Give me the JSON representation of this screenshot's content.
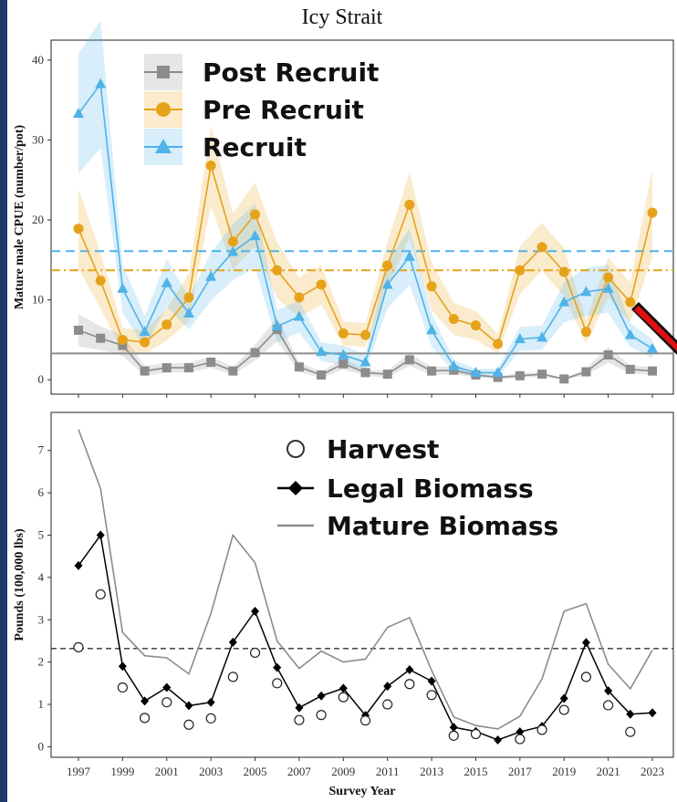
{
  "figure_title": "Icy Strait",
  "colors": {
    "post_recruit": "#8c8c8c",
    "pre_recruit": "#e6a21a",
    "recruit": "#4fb3e8",
    "legal": "#000000",
    "mature": "#8c8c8c",
    "background_border": "#1a3a6b",
    "arrow": "#e01010"
  },
  "chart_data": [
    {
      "type": "line",
      "ylabel": "Mature male CPUE (number/pot)",
      "xlabel": "",
      "x": [
        1997,
        1998,
        1999,
        2000,
        2001,
        2002,
        2003,
        2004,
        2005,
        2006,
        2007,
        2008,
        2009,
        2010,
        2011,
        2012,
        2013,
        2014,
        2015,
        2016,
        2017,
        2018,
        2019,
        2020,
        2021,
        2022,
        2023
      ],
      "ylim": [
        -1.8,
        42.5
      ],
      "yticks": [
        0,
        10,
        20,
        30,
        40
      ],
      "legend_position": "top-left",
      "series": [
        {
          "name": "Post Recruit",
          "marker": "square",
          "color_key": "post_recruit",
          "values": [
            6.2,
            5.2,
            4.3,
            1.1,
            1.5,
            1.5,
            2.2,
            1.1,
            3.4,
            6.3,
            1.6,
            0.6,
            2.0,
            0.9,
            0.7,
            2.5,
            1.1,
            1.2,
            0.6,
            0.3,
            0.5,
            0.7,
            0.1,
            1.0,
            3.1,
            1.3,
            1.1
          ],
          "band_halfwidth": [
            2.0,
            1.5,
            1.3,
            0.6,
            0.6,
            0.6,
            0.7,
            0.5,
            1.0,
            1.5,
            0.6,
            0.4,
            0.7,
            0.4,
            0.4,
            0.8,
            0.5,
            0.5,
            0.3,
            0.2,
            0.3,
            0.3,
            0.1,
            0.4,
            1.0,
            0.5,
            0.5
          ]
        },
        {
          "name": "Pre Recruit",
          "marker": "circle",
          "color_key": "pre_recruit",
          "values": [
            18.9,
            12.4,
            5.0,
            4.7,
            6.9,
            10.3,
            26.8,
            17.3,
            20.7,
            13.7,
            10.3,
            11.9,
            5.8,
            5.6,
            14.3,
            21.9,
            11.7,
            7.6,
            6.8,
            4.5,
            13.7,
            16.6,
            13.5,
            6.0,
            12.8,
            9.7,
            20.9
          ],
          "band_halfwidth": [
            5.0,
            3.5,
            1.5,
            1.5,
            2.0,
            3.0,
            5.0,
            3.5,
            4.0,
            3.5,
            2.5,
            2.5,
            1.5,
            1.5,
            3.0,
            4.0,
            3.0,
            2.0,
            1.8,
            1.2,
            3.0,
            3.0,
            3.0,
            1.5,
            2.5,
            2.5,
            5.5
          ]
        },
        {
          "name": "Recruit",
          "marker": "triangle",
          "color_key": "recruit",
          "values": [
            33.3,
            37.0,
            11.4,
            6.0,
            12.1,
            8.3,
            12.9,
            16.0,
            18.0,
            6.7,
            7.9,
            3.5,
            3.1,
            2.2,
            11.9,
            15.4,
            6.2,
            1.7,
            0.9,
            0.9,
            5.1,
            5.3,
            9.7,
            11.0,
            11.4,
            5.6,
            3.9
          ],
          "band_halfwidth": [
            7.5,
            8.0,
            3.0,
            2.0,
            3.0,
            2.0,
            3.0,
            3.5,
            4.0,
            2.0,
            2.0,
            1.2,
            1.2,
            1.0,
            3.0,
            3.5,
            2.0,
            0.8,
            0.5,
            0.5,
            1.5,
            1.5,
            2.5,
            3.0,
            3.0,
            1.5,
            1.2
          ]
        }
      ],
      "reference_lines": [
        {
          "series": "Post Recruit",
          "value": 3.3,
          "style": "solid",
          "color_key": "post_recruit"
        },
        {
          "series": "Pre Recruit",
          "value": 13.7,
          "style": "dashdot",
          "color_key": "pre_recruit"
        },
        {
          "series": "Recruit",
          "value": 16.1,
          "style": "dashed",
          "color_key": "recruit"
        }
      ]
    },
    {
      "type": "line",
      "ylabel": "Pounds (100,000 lbs)",
      "xlabel": "Survey Year",
      "x": [
        1997,
        1998,
        1999,
        2000,
        2001,
        2002,
        2003,
        2004,
        2005,
        2006,
        2007,
        2008,
        2009,
        2010,
        2011,
        2012,
        2013,
        2014,
        2015,
        2016,
        2017,
        2018,
        2019,
        2020,
        2021,
        2022,
        2023
      ],
      "xticks": [
        1997,
        1999,
        2001,
        2003,
        2005,
        2007,
        2009,
        2011,
        2013,
        2015,
        2017,
        2019,
        2021,
        2023
      ],
      "ylim": [
        -0.25,
        7.9
      ],
      "yticks": [
        0,
        1,
        2,
        3,
        4,
        5,
        6,
        7
      ],
      "legend_position": "top-right",
      "series": [
        {
          "name": "Harvest",
          "marker": "open-circle",
          "line": false,
          "values": [
            2.35,
            3.6,
            1.4,
            0.68,
            1.05,
            0.52,
            0.67,
            1.65,
            2.22,
            1.5,
            0.63,
            0.75,
            1.17,
            0.62,
            1.0,
            1.48,
            1.22,
            0.26,
            0.3,
            null,
            0.18,
            0.4,
            0.87,
            1.65,
            0.98,
            0.35,
            null
          ]
        },
        {
          "name": "Legal Biomass",
          "marker": "diamond",
          "color_key": "legal",
          "values": [
            4.28,
            5.0,
            1.9,
            1.08,
            1.4,
            0.97,
            1.05,
            2.47,
            3.2,
            1.87,
            0.92,
            1.2,
            1.38,
            0.74,
            1.43,
            1.82,
            1.55,
            0.46,
            0.36,
            0.16,
            0.35,
            0.48,
            1.14,
            2.46,
            1.32,
            0.77,
            0.8
          ]
        },
        {
          "name": "Mature Biomass",
          "marker": "none",
          "color_key": "mature",
          "values": [
            7.5,
            6.1,
            2.7,
            2.15,
            2.1,
            1.72,
            3.15,
            5.0,
            4.35,
            2.5,
            1.85,
            2.26,
            2.0,
            2.07,
            2.82,
            3.05,
            1.8,
            0.7,
            0.5,
            0.42,
            0.72,
            1.6,
            3.2,
            3.38,
            1.95,
            1.37,
            2.28
          ]
        }
      ],
      "reference_lines": [
        {
          "value": 2.32,
          "style": "dashed",
          "color_key": "legal"
        }
      ]
    }
  ]
}
